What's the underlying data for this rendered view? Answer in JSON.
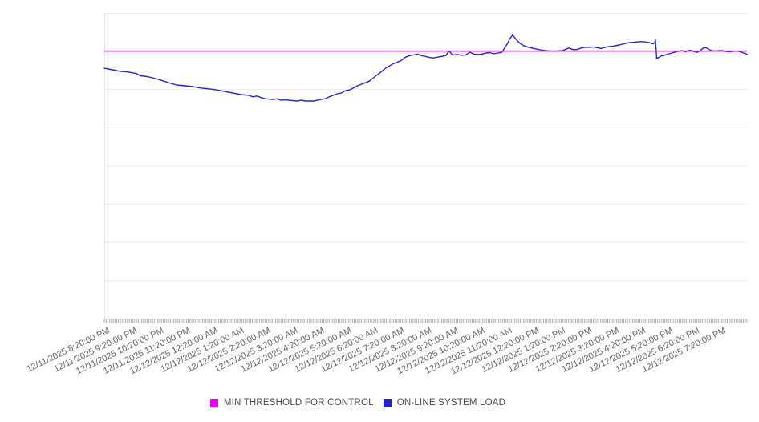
{
  "chart_data": {
    "type": "line",
    "title": "",
    "xlabel": "",
    "ylabel": "",
    "x_axis": {
      "unit": "hours from first tick",
      "range_hours": [
        0,
        24
      ],
      "tick_labels": [
        "12/11/2025 8:20:00 PM",
        "12/11/2025 9:20:00 PM",
        "12/11/2025 10:20:00 PM",
        "12/11/2025 11:20:00 PM",
        "12/12/2025 12:20:00 AM",
        "12/12/2025 1:20:00 AM",
        "12/12/2025 2:20:00 AM",
        "12/12/2025 3:20:00 AM",
        "12/12/2025 4:20:00 AM",
        "12/12/2025 5:20:00 AM",
        "12/12/2025 6:20:00 AM",
        "12/12/2025 7:20:00 AM",
        "12/12/2025 8:20:00 AM",
        "12/12/2025 9:20:00 AM",
        "12/12/2025 10:20:00 AM",
        "12/12/2025 11:20:00 AM",
        "12/12/2025 12:20:00 PM",
        "12/12/2025 1:20:00 PM",
        "12/12/2025 2:20:00 PM",
        "12/12/2025 3:20:00 PM",
        "12/12/2025 4:20:00 PM",
        "12/12/2025 5:20:00 PM",
        "12/12/2025 6:20:00 PM",
        "12/12/2025 7:20:00 PM"
      ],
      "label_rotation_deg": -26,
      "minor_tick_count": 360
    },
    "y_axis": {
      "tick_labels_visible": false,
      "gridline_count": 9,
      "ylim": [
        0,
        8
      ]
    },
    "grid": true,
    "legend_position": "bottom-center",
    "legend": [
      {
        "label": "MIN THRESHOLD FOR CONTROL",
        "color": "#ee00ee"
      },
      {
        "label": "ON-LINE SYSTEM LOAD",
        "color": "#2323cd"
      }
    ],
    "series": [
      {
        "name": "MIN THRESHOLD FOR CONTROL",
        "color": "#ee00ee",
        "style": "constant-horizontal-line",
        "value": 7.0
      },
      {
        "name": "ON-LINE SYSTEM LOAD",
        "color": "#2323cd",
        "style": "line",
        "points": [
          [
            0,
            6.55
          ],
          [
            0.3,
            6.51
          ],
          [
            0.6,
            6.47
          ],
          [
            0.9,
            6.45
          ],
          [
            1.2,
            6.41
          ],
          [
            1.35,
            6.35
          ],
          [
            1.6,
            6.33
          ],
          [
            1.8,
            6.3
          ],
          [
            2.1,
            6.24
          ],
          [
            2.4,
            6.17
          ],
          [
            2.7,
            6.11
          ],
          [
            3.0,
            6.09
          ],
          [
            3.3,
            6.07
          ],
          [
            3.6,
            6.03
          ],
          [
            3.9,
            6.01
          ],
          [
            4.2,
            5.98
          ],
          [
            4.5,
            5.94
          ],
          [
            4.8,
            5.9
          ],
          [
            5.1,
            5.86
          ],
          [
            5.4,
            5.84
          ],
          [
            5.55,
            5.8
          ],
          [
            5.7,
            5.82
          ],
          [
            5.85,
            5.78
          ],
          [
            6.0,
            5.75
          ],
          [
            6.3,
            5.73
          ],
          [
            6.45,
            5.75
          ],
          [
            6.6,
            5.71
          ],
          [
            6.75,
            5.72
          ],
          [
            6.9,
            5.71
          ],
          [
            7.2,
            5.69
          ],
          [
            7.35,
            5.71
          ],
          [
            7.5,
            5.69
          ],
          [
            7.8,
            5.69
          ],
          [
            7.95,
            5.71
          ],
          [
            8.1,
            5.73
          ],
          [
            8.25,
            5.75
          ],
          [
            8.4,
            5.8
          ],
          [
            8.55,
            5.84
          ],
          [
            8.7,
            5.88
          ],
          [
            8.85,
            5.9
          ],
          [
            9.0,
            5.96
          ],
          [
            9.15,
            5.98
          ],
          [
            9.3,
            6.03
          ],
          [
            9.45,
            6.09
          ],
          [
            9.6,
            6.13
          ],
          [
            9.75,
            6.17
          ],
          [
            9.9,
            6.21
          ],
          [
            10.05,
            6.3
          ],
          [
            10.2,
            6.38
          ],
          [
            10.35,
            6.46
          ],
          [
            10.5,
            6.55
          ],
          [
            10.65,
            6.61
          ],
          [
            10.8,
            6.67
          ],
          [
            10.95,
            6.71
          ],
          [
            11.1,
            6.76
          ],
          [
            11.25,
            6.84
          ],
          [
            11.4,
            6.88
          ],
          [
            11.55,
            6.9
          ],
          [
            11.7,
            6.92
          ],
          [
            11.85,
            6.88
          ],
          [
            12.0,
            6.86
          ],
          [
            12.15,
            6.83
          ],
          [
            12.3,
            6.82
          ],
          [
            12.45,
            6.84
          ],
          [
            12.6,
            6.86
          ],
          [
            12.75,
            6.88
          ],
          [
            12.88,
            7.0
          ],
          [
            13.0,
            6.9
          ],
          [
            13.2,
            6.91
          ],
          [
            13.35,
            6.89
          ],
          [
            13.5,
            6.9
          ],
          [
            13.65,
            6.97
          ],
          [
            13.8,
            6.92
          ],
          [
            13.95,
            6.91
          ],
          [
            14.1,
            6.92
          ],
          [
            14.25,
            6.95
          ],
          [
            14.4,
            6.96
          ],
          [
            14.55,
            6.93
          ],
          [
            14.7,
            6.95
          ],
          [
            14.85,
            6.97
          ],
          [
            14.95,
            7.08
          ],
          [
            15.05,
            7.19
          ],
          [
            15.15,
            7.33
          ],
          [
            15.25,
            7.42
          ],
          [
            15.35,
            7.33
          ],
          [
            15.45,
            7.25
          ],
          [
            15.55,
            7.19
          ],
          [
            15.7,
            7.13
          ],
          [
            15.9,
            7.09
          ],
          [
            16.1,
            7.06
          ],
          [
            16.3,
            7.03
          ],
          [
            16.5,
            7.01
          ],
          [
            16.7,
            7.0
          ],
          [
            16.9,
            7.0
          ],
          [
            17.1,
            7.01
          ],
          [
            17.25,
            7.05
          ],
          [
            17.35,
            7.08
          ],
          [
            17.5,
            7.04
          ],
          [
            17.65,
            7.04
          ],
          [
            17.8,
            7.08
          ],
          [
            17.95,
            7.1
          ],
          [
            18.1,
            7.1
          ],
          [
            18.25,
            7.11
          ],
          [
            18.4,
            7.09
          ],
          [
            18.55,
            7.07
          ],
          [
            18.7,
            7.1
          ],
          [
            18.85,
            7.12
          ],
          [
            19.0,
            7.13
          ],
          [
            19.15,
            7.15
          ],
          [
            19.3,
            7.17
          ],
          [
            19.45,
            7.2
          ],
          [
            19.6,
            7.22
          ],
          [
            19.75,
            7.23
          ],
          [
            19.9,
            7.24
          ],
          [
            20.05,
            7.25
          ],
          [
            20.2,
            7.24
          ],
          [
            20.35,
            7.22
          ],
          [
            20.5,
            7.19
          ],
          [
            20.55,
            7.22
          ],
          [
            20.58,
            7.3
          ],
          [
            20.63,
            6.81
          ],
          [
            20.7,
            6.83
          ],
          [
            20.8,
            6.87
          ],
          [
            20.95,
            6.9
          ],
          [
            21.1,
            6.93
          ],
          [
            21.25,
            6.96
          ],
          [
            21.4,
            6.99
          ],
          [
            21.5,
            7.0
          ],
          [
            21.6,
            7.01
          ],
          [
            21.7,
            6.98
          ],
          [
            21.8,
            7.01
          ],
          [
            21.9,
            7.02
          ],
          [
            22.0,
            6.99
          ],
          [
            22.15,
            6.97
          ],
          [
            22.25,
            7.01
          ],
          [
            22.35,
            7.07
          ],
          [
            22.45,
            7.09
          ],
          [
            22.55,
            7.06
          ],
          [
            22.65,
            7.02
          ],
          [
            22.8,
            7.0
          ],
          [
            22.95,
            7.01
          ],
          [
            23.1,
            7.01
          ],
          [
            23.2,
            6.99
          ],
          [
            23.35,
            6.98
          ],
          [
            23.45,
            6.99
          ],
          [
            23.6,
            7.0
          ],
          [
            23.7,
            6.99
          ],
          [
            23.8,
            6.97
          ],
          [
            23.92,
            6.94
          ],
          [
            24.0,
            6.92
          ]
        ]
      }
    ],
    "colors": {
      "gridline": "#e9e9e9",
      "axis_line": "#d9d9d9",
      "tick_mark": "#a8a8a8",
      "axis_label_text": "#616161",
      "legend_text": "#454545",
      "background": "#ffffff"
    }
  }
}
